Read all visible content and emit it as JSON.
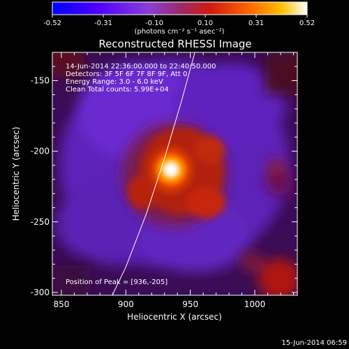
{
  "colorbar": {
    "ticks": [
      "-0.52",
      "-0.31",
      "-0.10",
      "0.10",
      "0.31",
      "0.52"
    ],
    "units": "(photons cm⁻² s⁻¹ asec⁻²)",
    "colors": [
      "#0000ff",
      "#5a00ff",
      "#8a3fd6",
      "#b8202a",
      "#e23000",
      "#ff7a00",
      "#ffc000",
      "#ffffff"
    ]
  },
  "chart_data": {
    "type": "heatmap",
    "title": "Reconstructed RHESSI Image",
    "xlabel": "Heliocentric X (arcsec)",
    "ylabel": "Heliocentric Y (arcsec)",
    "xlim": [
      843,
      1033
    ],
    "ylim": [
      -302,
      -130
    ],
    "xticks": [
      850,
      900,
      950,
      1000
    ],
    "yticks": [
      -150,
      -200,
      -250,
      -300
    ],
    "annotations": [
      "14-Jun-2014 22:36:00.000 to 22:40:50.000",
      "Detectors: 3F 5F 6F 7F 8F 9F, Att 0",
      "Energy Range: 3.0 - 6.0 keV",
      "Clean    Total counts: 5.99E+04"
    ],
    "peak_label": "Position of Peak = [936,-205]",
    "peak": [
      936,
      -205
    ],
    "limb_points": [
      [
        880,
        -320
      ],
      [
        900,
        -282
      ],
      [
        916,
        -244
      ],
      [
        930,
        -205
      ],
      [
        943,
        -165
      ],
      [
        955,
        -125
      ]
    ]
  },
  "footer": {
    "date": "15-Jun-2014 06:59"
  }
}
